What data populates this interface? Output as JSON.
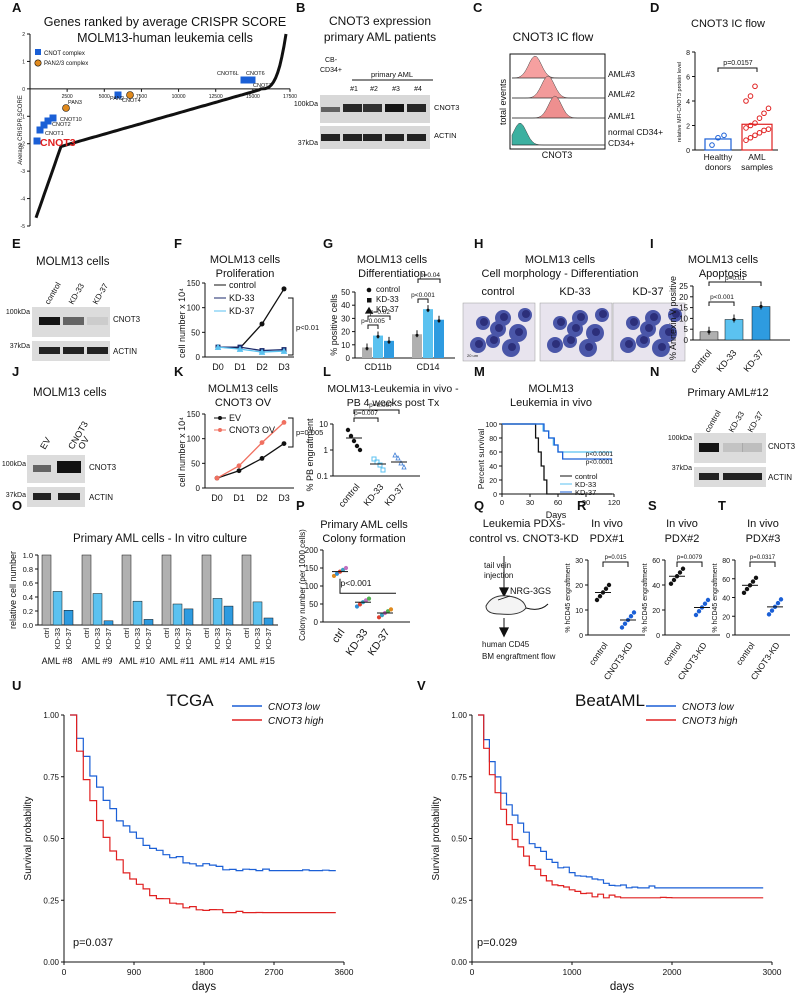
{
  "colors": {
    "blue": "#1a5fd6",
    "red": "#e02020",
    "orange": "#e08a1e",
    "lightblue": "#5bc2f0",
    "gray": "#b0b0b0",
    "navy": "#1b2a6b"
  },
  "panel_letters": [
    "A",
    "B",
    "C",
    "D",
    "E",
    "F",
    "G",
    "H",
    "I",
    "J",
    "K",
    "L",
    "M",
    "N",
    "O",
    "P",
    "Q",
    "R",
    "S",
    "T",
    "U",
    "V"
  ],
  "chart_data": [
    {
      "panel": "A",
      "type": "scatter",
      "title": "Genes ranked by average CRISPR SCORE",
      "subtitle": "MOLM13-human leukemia cells",
      "ylabel": "Average CRISPR SCORE",
      "xlim": [
        0,
        17500
      ],
      "ylim": [
        -5,
        2
      ],
      "xticks": [
        "2500",
        "5000",
        "7500",
        "10000",
        "12500",
        "15000",
        "17500"
      ],
      "yticks": [
        "2",
        "1",
        "0",
        "-1",
        "-2",
        "-3",
        "-4",
        "-5"
      ],
      "legend": [
        "CNOT complex",
        "PAN2/3 complex"
      ],
      "labels": [
        "CNOT3",
        "CNOT1",
        "CNOT2",
        "CNOT10",
        "PAN3",
        "CNOT4",
        "PAN2",
        "CNOT7",
        "CNOT6L",
        "CNOT6"
      ]
    },
    {
      "panel": "B",
      "type": "blot",
      "title": "CNOT3 expression",
      "subtitle": "primary AML patients",
      "group_label": "primary AML",
      "lanes": [
        "CB-CD34+",
        "#1",
        "#2",
        "#3",
        "#4"
      ],
      "bands": [
        "CNOT3",
        "ACTIN"
      ],
      "markers": [
        "100kDa",
        "37kDa"
      ]
    },
    {
      "panel": "C",
      "type": "histogram",
      "title": "CNOT3 IC flow",
      "xlabel": "CNOT3",
      "ylabel": "total events",
      "tracks": [
        "AML#3",
        "AML#2",
        "AML#1",
        "normal CD34+"
      ]
    },
    {
      "panel": "D",
      "type": "bar",
      "title": "CNOT3 IC flow",
      "ylabel": "relative MFI-CNOT3 protein level",
      "categories": [
        "Healthy donors",
        "AML samples"
      ],
      "values": [
        0.9,
        2.1
      ],
      "ylim": [
        0,
        8
      ],
      "yticks": [
        "0",
        "2",
        "4",
        "6",
        "8"
      ],
      "pvalue": "p=0.0157"
    },
    {
      "panel": "E",
      "type": "blot",
      "title": "MOLM13 cells",
      "lanes": [
        "control",
        "KD-33",
        "KD-37"
      ],
      "bands": [
        "CNOT3",
        "ACTIN"
      ],
      "markers": [
        "100kDa",
        "37kDa"
      ]
    },
    {
      "panel": "F",
      "type": "line",
      "title": "MOLM13 cells",
      "subtitle": "Proliferation",
      "ylabel": "cell number x 10⁴",
      "categories": [
        "D0",
        "D1",
        "D2",
        "D3"
      ],
      "ylim": [
        0,
        150
      ],
      "yticks": [
        "0",
        "50",
        "100",
        "150"
      ],
      "series": [
        {
          "name": "control",
          "values": [
            20,
            18,
            67,
            138
          ]
        },
        {
          "name": "KD-33",
          "values": [
            20,
            20,
            13,
            15
          ]
        },
        {
          "name": "KD-37",
          "values": [
            20,
            16,
            10,
            12
          ]
        }
      ],
      "pvalue": "p<0.01"
    },
    {
      "panel": "G",
      "type": "bar",
      "title": "MOLM13 cells",
      "subtitle": "Differentiation",
      "ylabel": "% positive cells",
      "groups": [
        "CD11b",
        "CD14"
      ],
      "ylim": [
        0,
        50
      ],
      "yticks": [
        "0",
        "10",
        "20",
        "30",
        "40",
        "50"
      ],
      "series": [
        {
          "name": "control",
          "values": [
            8,
            18
          ]
        },
        {
          "name": "KD-33",
          "values": [
            17,
            37
          ]
        },
        {
          "name": "KD-37",
          "values": [
            13,
            29
          ]
        }
      ],
      "pvalues": [
        "p=0.005",
        "p=0.02",
        "p<0.001",
        "p=0.04"
      ]
    },
    {
      "panel": "H",
      "type": "image",
      "title": "MOLM13 cells",
      "subtitle": "Cell morphology - Differentiation",
      "captions": [
        "control",
        "KD-33",
        "KD-37"
      ],
      "scalebar": "20 um"
    },
    {
      "panel": "I",
      "type": "bar",
      "title": "MOLM13 cells",
      "subtitle": "Apoptosis",
      "ylabel": "% Annexin V positive",
      "categories": [
        "control",
        "KD-33",
        "KD-37"
      ],
      "values": [
        3.8,
        9.5,
        15.5
      ],
      "ylim": [
        0,
        25
      ],
      "yticks": [
        "0",
        "5",
        "10",
        "15",
        "20",
        "25"
      ],
      "pvalues": [
        "p<0.001",
        "p=0.01"
      ]
    },
    {
      "panel": "J",
      "type": "blot",
      "title": "MOLM13 cells",
      "lanes": [
        "EV",
        "CNOT3 OV"
      ],
      "bands": [
        "CNOT3",
        "ACTIN"
      ],
      "markers": [
        "100kDa",
        "37kDa"
      ]
    },
    {
      "panel": "K",
      "type": "line",
      "title": "MOLM13 cells",
      "subtitle": "CNOT3 OV",
      "ylabel": "cell number x 10⁴",
      "categories": [
        "D0",
        "D1",
        "D2",
        "D3"
      ],
      "ylim": [
        0,
        150
      ],
      "yticks": [
        "0",
        "50",
        "100",
        "150"
      ],
      "series": [
        {
          "name": "EV",
          "values": [
            20,
            35,
            60,
            90
          ]
        },
        {
          "name": "CNOT3 OV",
          "values": [
            20,
            45,
            92,
            133
          ]
        }
      ],
      "pvalue": "p=0.005"
    },
    {
      "panel": "L",
      "type": "scatter",
      "title": "MOLM13-Leukemia in vivo -",
      "subtitle": "PB 4 weeks post Tx",
      "ylabel": "% PB engraftment",
      "categories": [
        "control",
        "KD-33",
        "KD-37"
      ],
      "yticks": [
        "0.1",
        "1",
        "10"
      ],
      "pvalues": [
        "p=0.007",
        "p=0.007"
      ]
    },
    {
      "panel": "M",
      "type": "survival",
      "title": "MOLM13",
      "subtitle": "Leukemia in vivo",
      "xlabel": "Days",
      "ylabel": "Percent survival",
      "xticks": [
        "0",
        "30",
        "60",
        "90",
        "120"
      ],
      "yticks": [
        "0",
        "20",
        "40",
        "60",
        "80",
        "100"
      ],
      "series": [
        {
          "name": "control"
        },
        {
          "name": "KD-33"
        },
        {
          "name": "KD-37"
        }
      ],
      "pvalues": [
        "p<0.0001",
        "p<0.0001"
      ]
    },
    {
      "panel": "N",
      "type": "blot",
      "title": "Primary AML#12",
      "lanes": [
        "control",
        "KD-33",
        "KD-37"
      ],
      "bands": [
        "CNOT3",
        "ACTIN"
      ],
      "markers": [
        "100kDa",
        "37kDa"
      ]
    },
    {
      "panel": "O",
      "type": "bar",
      "title": "Primary AML cells - In vitro culture",
      "ylabel": "relative cell number",
      "ylim": [
        0,
        1
      ],
      "yticks": [
        "0.0",
        "0.2",
        "0.4",
        "0.6",
        "0.8",
        "1.0"
      ],
      "groups": [
        "AML #8",
        "AML #9",
        "AML #10",
        "AML #11",
        "AML #14",
        "AML #15"
      ],
      "bar_labels": [
        "ctrl",
        "KD-33",
        "KD-37"
      ],
      "series": [
        {
          "name": "ctrl",
          "values": [
            1,
            1,
            1,
            1,
            1,
            1
          ]
        },
        {
          "name": "KD-33",
          "values": [
            0.48,
            0.45,
            0.34,
            0.3,
            0.38,
            0.33
          ]
        },
        {
          "name": "KD-37",
          "values": [
            0.21,
            0.06,
            0.08,
            0.23,
            0.27,
            0.1
          ]
        }
      ]
    },
    {
      "panel": "P",
      "type": "scatter",
      "title": "Primary AML cells",
      "subtitle": "Colony formation",
      "ylabel": "Colony number (per 1000 cells)",
      "categories": [
        "ctrl",
        "KD-33",
        "KD-37"
      ],
      "values": [
        140,
        55,
        25
      ],
      "ylim": [
        0,
        200
      ],
      "yticks": [
        "0",
        "50",
        "100",
        "150",
        "200"
      ],
      "pvalue": "p<0.001"
    },
    {
      "panel": "Q",
      "type": "diagram",
      "title": "Leukemia PDXs-",
      "subtitle": "control vs. CNOT3-KD",
      "steps": [
        "tail vein",
        "injection",
        "NRG-3GS",
        "human CD45",
        "BM engraftment flow"
      ]
    },
    {
      "panel": "R",
      "type": "scatter",
      "title": "In vivo",
      "subtitle": "PDX#1",
      "ylabel": "% hCD45 engraftment",
      "categories": [
        "control",
        "CNOT3-KD"
      ],
      "values": [
        17,
        6
      ],
      "ylim": [
        0,
        30
      ],
      "yticks": [
        "0",
        "10",
        "20",
        "30"
      ],
      "pvalue": "p=0.015"
    },
    {
      "panel": "S",
      "type": "scatter",
      "title": "In vivo",
      "subtitle": "PDX#2",
      "ylabel": "% hCD45 engraftment",
      "categories": [
        "control",
        "CNOT3-KD"
      ],
      "values": [
        47,
        22
      ],
      "ylim": [
        0,
        60
      ],
      "yticks": [
        "0",
        "20",
        "40",
        "60"
      ],
      "pvalue": "p=0.0079"
    },
    {
      "panel": "T",
      "type": "scatter",
      "title": "In vivo",
      "subtitle": "PDX#3",
      "ylabel": "% hCD45 engraftment",
      "categories": [
        "control",
        "CNOT3-KD"
      ],
      "values": [
        53,
        30
      ],
      "ylim": [
        0,
        80
      ],
      "yticks": [
        "0",
        "20",
        "40",
        "60",
        "80"
      ],
      "pvalue": "p=0.0317"
    },
    {
      "panel": "U",
      "type": "survival",
      "title": "TCGA",
      "xlabel": "days",
      "ylabel": "Survival probability",
      "xticks": [
        "0",
        "900",
        "1800",
        "2700",
        "3600"
      ],
      "yticks": [
        "0.00",
        "0.25",
        "0.50",
        "0.75",
        "1.00"
      ],
      "series": [
        {
          "name": "CNOT3 low"
        },
        {
          "name": "CNOT3 high"
        }
      ],
      "pvalue": "p=0.037"
    },
    {
      "panel": "V",
      "type": "survival",
      "title": "BeatAML",
      "xlabel": "days",
      "ylabel": "Survival probability",
      "xticks": [
        "0",
        "1000",
        "2000",
        "3000"
      ],
      "yticks": [
        "0.00",
        "0.25",
        "0.50",
        "0.75",
        "1.00"
      ],
      "series": [
        {
          "name": "CNOT3 low"
        },
        {
          "name": "CNOT3 high"
        }
      ],
      "pvalue": "p=0.029"
    }
  ]
}
